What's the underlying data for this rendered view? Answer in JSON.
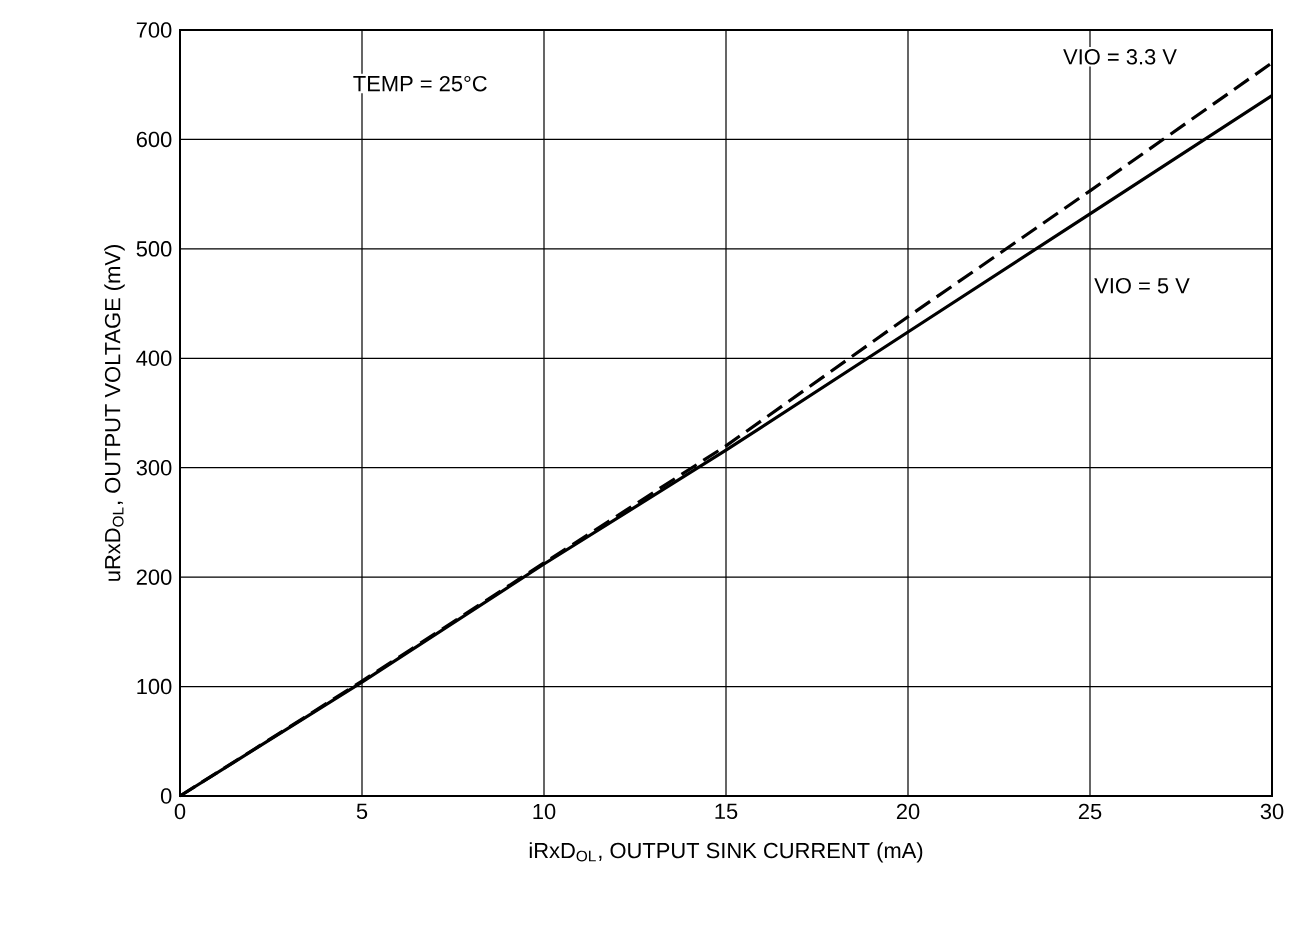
{
  "chart_data": {
    "type": "line",
    "xlabel": "iRxD$_{OL}$, OUTPUT SINK CURRENT (mA)",
    "ylabel": "uRxD$_{OL}$, OUTPUT VOLTAGE (mV)",
    "annotations": [
      "TEMP = 25°C"
    ],
    "x": [
      0,
      5,
      10,
      15,
      20,
      25,
      30
    ],
    "series": [
      {
        "name": "VIO = 3.3 V",
        "color": "#000000",
        "line_style": "dashed",
        "values": [
          0,
          105,
          213,
          320,
          438,
          553,
          670
        ]
      },
      {
        "name": "VIO = 5 V",
        "color": "#000000",
        "line_style": "solid",
        "values": [
          0,
          104,
          212,
          316,
          424,
          532,
          640
        ]
      }
    ],
    "xlim": [
      0,
      30
    ],
    "ylim": [
      0,
      700
    ],
    "xticks": [
      0,
      5,
      10,
      15,
      20,
      25,
      30
    ],
    "yticks": [
      0,
      100,
      200,
      300,
      400,
      500,
      600,
      700
    ],
    "grid": true,
    "legend": false,
    "marker": "none"
  }
}
